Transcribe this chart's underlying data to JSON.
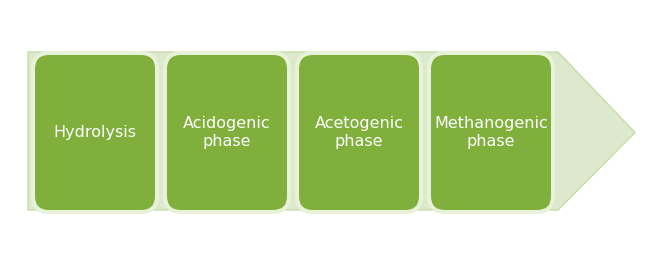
{
  "background_color": "#ffffff",
  "arrow_body_color": "#dce9cc",
  "arrow_edge_color": "#c8dba8",
  "box_color": "#80af3c",
  "box_border_color": "#e8f2d8",
  "text_color": "#ffffff",
  "labels": [
    "Hydrolysis",
    "Acidogenic\nphase",
    "Acetogenic\nphase",
    "Methanogenic\nphase"
  ],
  "font_size": 11.5,
  "fig_width": 6.59,
  "fig_height": 2.65,
  "dpi": 100
}
